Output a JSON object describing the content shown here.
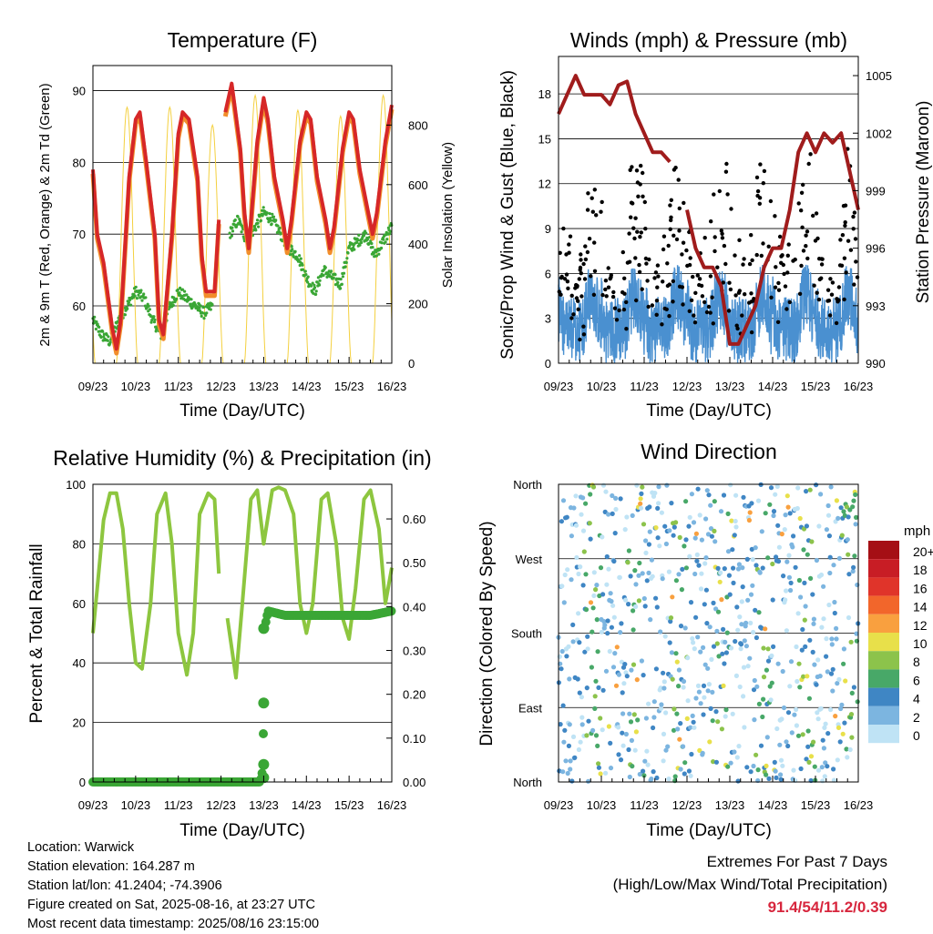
{
  "time_ticks": [
    "09/23",
    "10/23",
    "11/23",
    "12/23",
    "13/23",
    "14/23",
    "15/23",
    "16/23"
  ],
  "panels": {
    "temperature": {
      "title": "Temperature (F)",
      "xlabel": "Time (Day/UTC)",
      "ylabel_left": "2m & 9m T (Red, Orange) & 2m Td (Green)",
      "ylabel_right": "Solar Insolation (Yellow)"
    },
    "winds": {
      "title": "Winds (mph) & Pressure (mb)",
      "xlabel": "Time (Day/UTC)",
      "ylabel_left": "Sonic/Prop Wind & Gust (Blue, Black)",
      "ylabel_right": "Station Pressure (Maroon)"
    },
    "humidity": {
      "title": "Relative Humidity (%) & Precipitation (in)",
      "xlabel": "Time (Day/UTC)",
      "ylabel_left": "Percent & Total Rainfall"
    },
    "direction": {
      "title": "Wind Direction",
      "xlabel": "Time (Day/UTC)",
      "ylabel_left": "Direction (Colored By Speed)",
      "legend_title": "mph",
      "legend_labels": [
        "20+",
        "18",
        "16",
        "14",
        "12",
        "10",
        "8",
        "6",
        "4",
        "2",
        "0"
      ],
      "legend_colors": [
        "#a50f15",
        "#c81d25",
        "#e0342a",
        "#f2662b",
        "#f9a03f",
        "#e8e04a",
        "#8cc34b",
        "#48a868",
        "#3f86c4",
        "#7cb5e0",
        "#bfe3f5"
      ]
    }
  },
  "chart_data": [
    {
      "type": "line",
      "id": "temperature",
      "x_days": [
        9,
        10,
        11,
        12,
        13,
        14,
        15,
        16
      ],
      "ylim": [
        52,
        93.5
      ],
      "y_ticks": [
        60,
        70,
        80,
        90
      ],
      "ylim_right": [
        0,
        1000
      ],
      "y_ticks_right": [
        0,
        200,
        400,
        600,
        800
      ],
      "series": [
        {
          "key": "t2m",
          "color": "#d62728",
          "x": [
            9.0,
            9.1,
            9.25,
            9.45,
            9.55,
            9.65,
            9.85,
            10.0,
            10.1,
            10.25,
            10.45,
            10.55,
            10.65,
            10.85,
            11.0,
            11.1,
            11.25,
            11.45,
            11.55,
            11.65,
            11.85,
            11.95,
            12.0,
            12.1,
            12.25,
            12.45,
            12.55,
            12.65,
            12.85,
            13.0,
            13.1,
            13.25,
            13.45,
            13.55,
            13.65,
            13.85,
            14.0,
            14.1,
            14.25,
            14.45,
            14.55,
            14.65,
            14.85,
            15.0,
            15.1,
            15.25,
            15.45,
            15.55,
            15.65,
            15.85,
            16.0
          ],
          "y": [
            79,
            70,
            66,
            57,
            54,
            58,
            78,
            86,
            87,
            80,
            70,
            58,
            56,
            70,
            84,
            87,
            86,
            78,
            67,
            62,
            62,
            72,
            null,
            87,
            91,
            82,
            73,
            68,
            83,
            89,
            86,
            78,
            72,
            68,
            72,
            83,
            87,
            86,
            78,
            72,
            68,
            71,
            82,
            87,
            86,
            79,
            73,
            70,
            73,
            83,
            88
          ]
        }
      ],
      "dewpoint_color": "#3aa635",
      "dewpoint": {
        "x": [
          9.0,
          9.2,
          9.4,
          9.6,
          9.8,
          10.0,
          10.2,
          10.4,
          10.6,
          10.8,
          11.0,
          11.2,
          11.4,
          11.6,
          11.8,
          12.0,
          12.2,
          12.4,
          12.6,
          12.8,
          13.0,
          13.2,
          13.4,
          13.6,
          13.8,
          14.0,
          14.2,
          14.4,
          14.6,
          14.8,
          15.0,
          15.2,
          15.4,
          15.6,
          15.8,
          16.0
        ],
        "y": [
          58,
          56,
          55,
          58,
          60,
          62,
          61,
          58,
          56,
          60,
          62,
          61,
          60,
          59,
          60,
          null,
          70,
          72,
          69,
          71,
          73,
          72,
          70,
          68,
          67,
          64,
          62,
          65,
          64,
          63,
          68,
          69,
          70,
          67,
          69,
          71
        ]
      },
      "solar_color": "#f4d03f",
      "solar_days": [
        9,
        10,
        11,
        12,
        13,
        14,
        15,
        16
      ],
      "solar_peaks": [
        820,
        860,
        860,
        800,
        900,
        850,
        830,
        900
      ]
    },
    {
      "type": "line",
      "id": "winds",
      "ylim": [
        0,
        20.5
      ],
      "y_ticks": [
        0,
        3,
        6,
        9,
        12,
        15,
        18
      ],
      "ylim_right": [
        990,
        1006
      ],
      "y_ticks_right": [
        990,
        993,
        996,
        999,
        1002,
        1005
      ],
      "wind_color": "#4a90d0",
      "gust_color": "#000000",
      "pressure_color": "#a01c1c",
      "pressure": {
        "x": [
          9.0,
          9.2,
          9.4,
          9.6,
          9.8,
          10.0,
          10.2,
          10.4,
          10.6,
          10.8,
          11.0,
          11.2,
          11.4,
          11.6,
          11.8,
          12.0,
          12.2,
          12.4,
          12.6,
          12.8,
          13.0,
          13.2,
          13.4,
          13.6,
          13.8,
          14.0,
          14.2,
          14.4,
          14.6,
          14.8,
          15.0,
          15.2,
          15.4,
          15.6,
          15.8,
          16.0
        ],
        "y": [
          1003,
          1004,
          1005,
          1004,
          1004,
          1004,
          1003.5,
          1004.5,
          1004.7,
          1003,
          1002,
          1001,
          1001,
          1000.5,
          null,
          998,
          996,
          995,
          995,
          994,
          991,
          991,
          992,
          993,
          995,
          996,
          996,
          998,
          1001,
          1002,
          1001,
          1002,
          1001.5,
          1002,
          1000,
          998
        ]
      }
    },
    {
      "type": "line",
      "id": "humidity",
      "ylim": [
        0,
        100
      ],
      "y_ticks": [
        0,
        20,
        40,
        60,
        80,
        100
      ],
      "ylim_right": [
        0,
        0.679
      ],
      "y_ticks_right": [
        "0.00",
        "0.10",
        "0.20",
        "0.30",
        "0.40",
        "0.50",
        "0.60"
      ],
      "rh_color": "#8dc63f",
      "precip_color": "#3aa635",
      "rh": {
        "x": [
          9.0,
          9.1,
          9.25,
          9.4,
          9.55,
          9.7,
          9.85,
          10.0,
          10.15,
          10.35,
          10.5,
          10.7,
          10.85,
          11.0,
          11.2,
          11.35,
          11.5,
          11.7,
          11.85,
          11.95,
          12.0,
          12.15,
          12.35,
          12.5,
          12.7,
          12.85,
          13.0,
          13.2,
          13.35,
          13.5,
          13.7,
          13.85,
          14.0,
          14.15,
          14.35,
          14.5,
          14.7,
          14.85,
          15.0,
          15.15,
          15.35,
          15.5,
          15.7,
          15.85,
          16.0
        ],
        "y": [
          50,
          65,
          88,
          97,
          97,
          85,
          60,
          40,
          38,
          60,
          90,
          97,
          80,
          50,
          36,
          50,
          90,
          97,
          95,
          70,
          null,
          55,
          35,
          60,
          95,
          98,
          80,
          98,
          99,
          98,
          90,
          60,
          50,
          60,
          95,
          97,
          80,
          55,
          48,
          65,
          95,
          98,
          85,
          60,
          72
        ]
      },
      "precip": {
        "x": [
          9.0,
          9.5,
          10.0,
          10.5,
          11.0,
          11.5,
          12.0,
          12.5,
          12.9,
          12.95,
          12.98,
          13.0,
          13.02,
          13.1,
          13.5,
          14.0,
          14.5,
          15.0,
          15.5,
          16.0
        ],
        "y": [
          0,
          0,
          0,
          0,
          0,
          0,
          0,
          0,
          0,
          0.01,
          0.04,
          0.18,
          0.35,
          0.39,
          0.38,
          0.38,
          0.38,
          0.38,
          0.38,
          0.39
        ]
      }
    },
    {
      "type": "scatter",
      "id": "direction",
      "y_ticks": [
        "North",
        "East",
        "South",
        "West",
        "North"
      ],
      "ylim_deg": [
        0,
        360
      ],
      "note_series": "wind direction samples colored by speed"
    }
  ],
  "info": {
    "location": "Location: Warwick",
    "elevation": "Station elevation: 164.287 m",
    "latlon": "Station lat/lon: 41.2404; -74.3906",
    "created": "Figure created on Sat, 2025-08-16, at 23:27 UTC",
    "recent": "Most recent data timestamp: 2025/08/16 23:15:00",
    "extremes_title": "Extremes For Past 7 Days",
    "extremes_sub": "(High/Low/Max Wind/Total Precipitation)",
    "extremes_values": "91.4/54/11.2/0.39"
  }
}
